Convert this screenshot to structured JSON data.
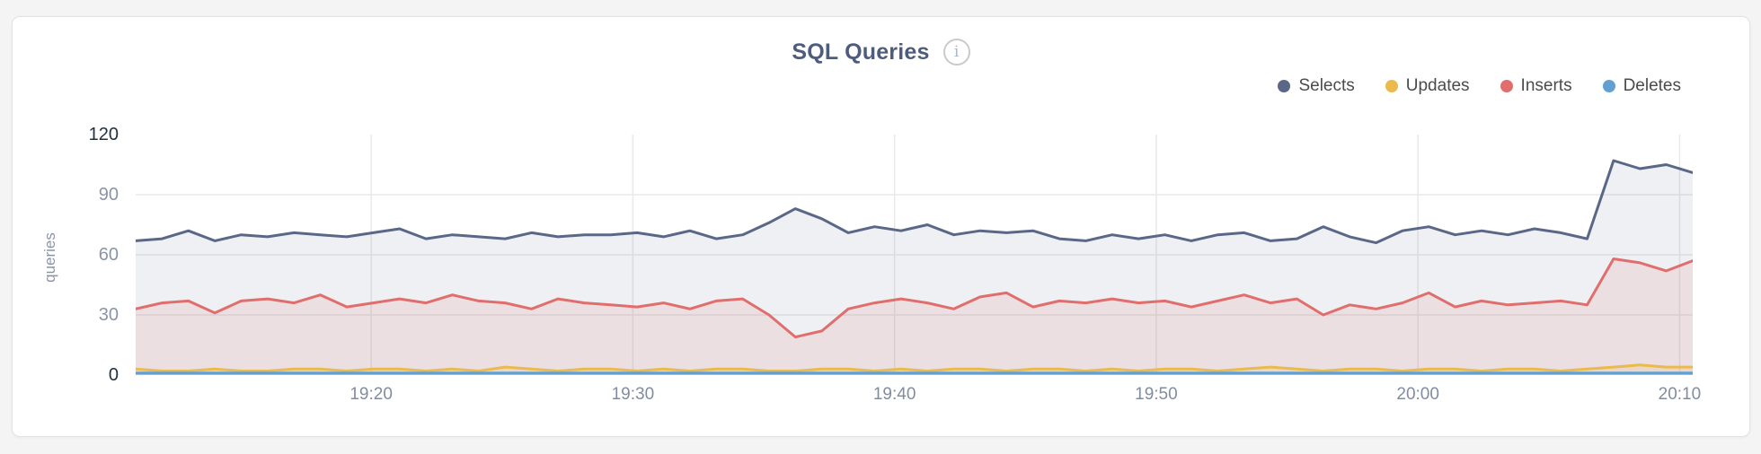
{
  "card": {
    "title": "SQL Queries",
    "info_glyph": "i"
  },
  "colors": {
    "selects": "#5a6787",
    "updates": "#eaba4d",
    "inserts": "#e06e6c",
    "deletes": "#62a0d4",
    "gridline": "#e9e9e9",
    "tick_label": "#8b94a7",
    "tick_label_strong": "#22303f",
    "title": "#4e5c7e"
  },
  "chart_data": {
    "type": "area",
    "title": "SQL Queries",
    "xlabel": "",
    "ylabel": "queries",
    "ylim": [
      0,
      120
    ],
    "y_ticks": [
      0,
      30,
      60,
      90,
      120
    ],
    "y_ticks_strong": [
      0,
      120
    ],
    "grid": true,
    "legend_position": "top-right",
    "x": [
      "19:11",
      "19:12",
      "19:13",
      "19:14",
      "19:15",
      "19:16",
      "19:17",
      "19:18",
      "19:19",
      "19:20",
      "19:21",
      "19:22",
      "19:23",
      "19:24",
      "19:25",
      "19:26",
      "19:27",
      "19:28",
      "19:29",
      "19:30",
      "19:31",
      "19:32",
      "19:33",
      "19:34",
      "19:35",
      "19:36",
      "19:37",
      "19:38",
      "19:39",
      "19:40",
      "19:41",
      "19:42",
      "19:43",
      "19:44",
      "19:45",
      "19:46",
      "19:47",
      "19:48",
      "19:49",
      "19:50",
      "19:51",
      "19:52",
      "19:53",
      "19:54",
      "19:55",
      "19:56",
      "19:57",
      "19:58",
      "19:59",
      "20:00",
      "20:01",
      "20:02",
      "20:03",
      "20:04",
      "20:05",
      "20:06",
      "20:07",
      "20:08",
      "20:09",
      "20:10"
    ],
    "x_ticks": [
      "19:20",
      "19:30",
      "19:40",
      "19:50",
      "20:00",
      "20:10"
    ],
    "series": [
      {
        "name": "Selects",
        "color": "#5a6787",
        "fill": "rgba(90,103,135,0.10)",
        "values": [
          67,
          68,
          72,
          67,
          70,
          69,
          71,
          70,
          69,
          71,
          73,
          68,
          70,
          69,
          68,
          71,
          69,
          70,
          70,
          71,
          69,
          72,
          68,
          70,
          76,
          83,
          78,
          71,
          74,
          72,
          75,
          70,
          72,
          71,
          72,
          68,
          67,
          70,
          68,
          70,
          67,
          70,
          71,
          67,
          68,
          74,
          69,
          66,
          72,
          74,
          70,
          72,
          70,
          73,
          71,
          68,
          107,
          103,
          105,
          101
        ]
      },
      {
        "name": "Updates",
        "color": "#eaba4d",
        "fill": "rgba(234,186,77,0.18)",
        "values": [
          3,
          2,
          2,
          3,
          2,
          2,
          3,
          3,
          2,
          3,
          3,
          2,
          3,
          2,
          4,
          3,
          2,
          3,
          3,
          2,
          3,
          2,
          3,
          3,
          2,
          2,
          3,
          3,
          2,
          3,
          2,
          3,
          3,
          2,
          3,
          3,
          2,
          3,
          2,
          3,
          3,
          2,
          3,
          4,
          3,
          2,
          3,
          3,
          2,
          3,
          3,
          2,
          3,
          3,
          2,
          3,
          4,
          5,
          4,
          4
        ]
      },
      {
        "name": "Inserts",
        "color": "#e06e6c",
        "fill": "rgba(224,110,108,0.12)",
        "values": [
          33,
          36,
          37,
          31,
          37,
          38,
          36,
          40,
          34,
          36,
          38,
          36,
          40,
          37,
          36,
          33,
          38,
          36,
          35,
          34,
          36,
          33,
          37,
          38,
          30,
          19,
          22,
          33,
          36,
          38,
          36,
          33,
          39,
          41,
          34,
          37,
          36,
          38,
          36,
          37,
          34,
          37,
          40,
          36,
          38,
          30,
          35,
          33,
          36,
          41,
          34,
          37,
          35,
          36,
          37,
          35,
          58,
          56,
          52,
          57
        ]
      },
      {
        "name": "Deletes",
        "color": "#62a0d4",
        "fill": "rgba(98,160,212,0.25)",
        "values": [
          1,
          1,
          1,
          1,
          1,
          1,
          1,
          1,
          1,
          1,
          1,
          1,
          1,
          1,
          1,
          1,
          1,
          1,
          1,
          1,
          1,
          1,
          1,
          1,
          1,
          1,
          1,
          1,
          1,
          1,
          1,
          1,
          1,
          1,
          1,
          1,
          1,
          1,
          1,
          1,
          1,
          1,
          1,
          1,
          1,
          1,
          1,
          1,
          1,
          1,
          1,
          1,
          1,
          1,
          1,
          1,
          1,
          1,
          1,
          1
        ]
      }
    ]
  }
}
